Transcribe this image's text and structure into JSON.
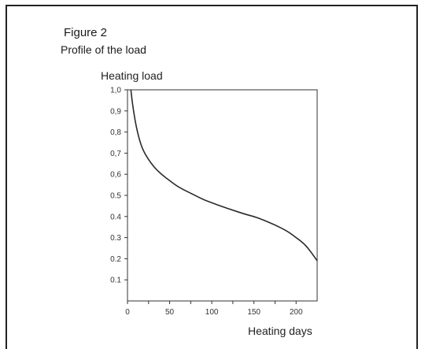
{
  "figure": {
    "title": "Figure 2",
    "subtitle": "Profile of the load"
  },
  "chart_data": {
    "type": "line",
    "title": "Profile of the load",
    "xlabel": "Heating days",
    "ylabel": "Heating load",
    "xlim": [
      0,
      225
    ],
    "ylim": [
      0,
      1.0
    ],
    "xticks": [
      0,
      50,
      100,
      150,
      200
    ],
    "yticks": [
      0.1,
      0.2,
      0.3,
      0.4,
      0.5,
      0.6,
      0.7,
      0.8,
      0.9,
      1.0
    ],
    "ytick_labels": [
      "0.1",
      "0.2",
      "0.3",
      "0.4",
      "0.5",
      "0.6",
      "0.7",
      "0.8",
      "0.9",
      "1.0"
    ],
    "yticks_display": [
      "0.1",
      "0.2",
      "0.3",
      "0.4",
      "0.5",
      "0,6",
      "0,7",
      "0,8",
      "0,9",
      "1,0"
    ],
    "grid": false,
    "series": [
      {
        "x": [
          4,
          6,
          10,
          15,
          20,
          30,
          40,
          50,
          60,
          75,
          90,
          100,
          110,
          125,
          140,
          150,
          160,
          175,
          190,
          200,
          210,
          218,
          225
        ],
        "y": [
          1.0,
          0.93,
          0.83,
          0.75,
          0.7,
          0.64,
          0.6,
          0.57,
          0.54,
          0.51,
          0.48,
          0.465,
          0.45,
          0.43,
          0.41,
          0.4,
          0.385,
          0.36,
          0.33,
          0.3,
          0.27,
          0.23,
          0.19
        ]
      }
    ]
  }
}
